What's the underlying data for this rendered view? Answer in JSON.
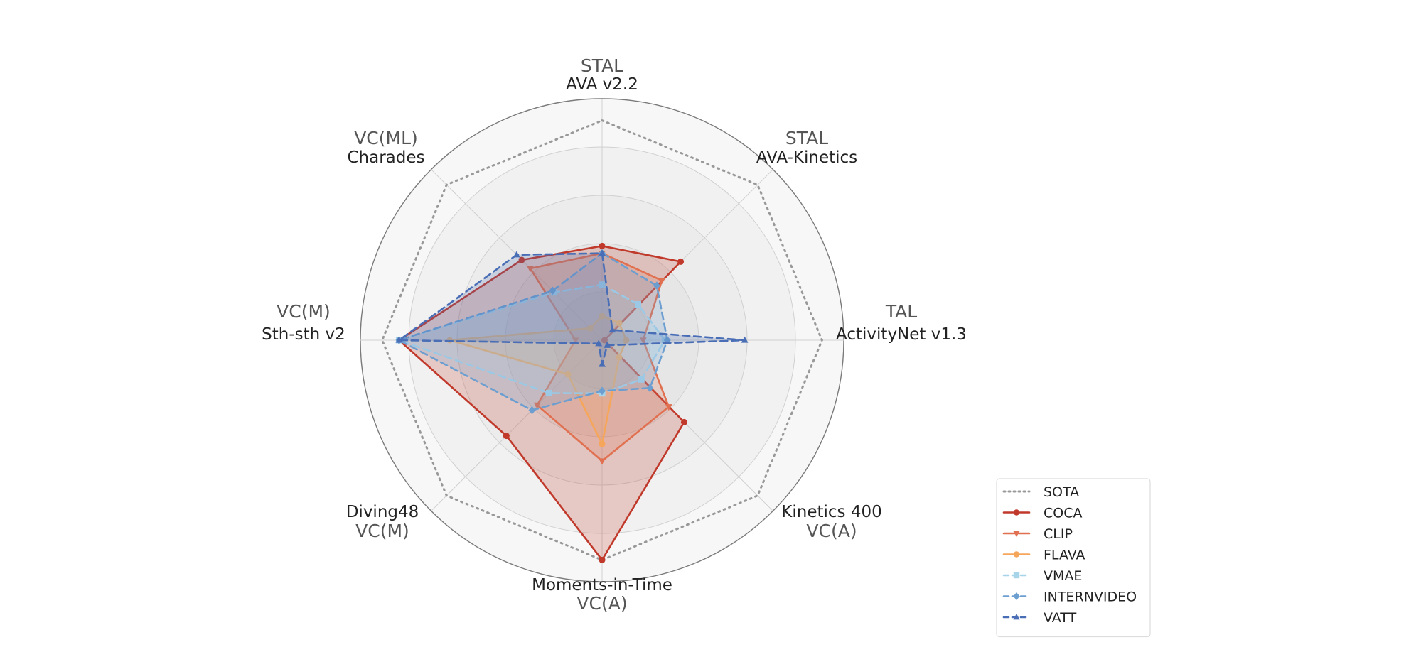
{
  "chart_data": {
    "type": "radar",
    "axes": [
      {
        "task": "STAL",
        "dataset": "AVA v2.2"
      },
      {
        "task": "STAL",
        "dataset": "AVA-Kinetics"
      },
      {
        "task": "TAL",
        "dataset": "ActivityNet v1.3"
      },
      {
        "task": "VC(A)",
        "dataset": "Kinetics 400"
      },
      {
        "task": "VC(A)",
        "dataset": "Moments-in-Time"
      },
      {
        "task": "VC(M)",
        "dataset": "Diving48"
      },
      {
        "task": "VC(M)",
        "dataset": "Sth-sth v2"
      },
      {
        "task": "VC(ML)",
        "dataset": "Charades"
      }
    ],
    "rlim": [
      0,
      1
    ],
    "rings": [
      0.2,
      0.4,
      0.6,
      0.8,
      1.0
    ],
    "grid": true,
    "legend_position": "lower-right",
    "series": [
      {
        "name": "SOTA",
        "values": [
          0.91,
          0.91,
          0.91,
          0.91,
          0.91,
          0.91,
          0.91,
          0.91
        ],
        "color": "#999999",
        "dash": "2 6",
        "marker": "none",
        "fill": false
      },
      {
        "name": "COCA",
        "values": [
          0.39,
          0.46,
          0.01,
          0.48,
          0.91,
          0.56,
          0.84,
          0.47
        ],
        "color": "#c0392b",
        "dash": "",
        "marker": "circle",
        "fill": true
      },
      {
        "name": "CLIP",
        "values": [
          0.36,
          0.35,
          0.17,
          0.39,
          0.5,
          0.38,
          0.11,
          0.42
        ],
        "color": "#e07050",
        "dash": "",
        "marker": "triangle-down",
        "fill": true
      },
      {
        "name": "FLAVA",
        "values": [
          0.1,
          0.1,
          0.1,
          0.1,
          0.43,
          0.2,
          0.63,
          0.07
        ],
        "color": "#f5a65b",
        "dash": "",
        "marker": "circle",
        "fill": true
      },
      {
        "name": "VMAE",
        "values": [
          0.23,
          0.21,
          0.26,
          0.23,
          0.22,
          0.31,
          0.84,
          0.28
        ],
        "color": "#a8d4ea",
        "dash": "10 6",
        "marker": "square",
        "fill": true
      },
      {
        "name": "INTERNVIDEO",
        "values": [
          0.36,
          0.32,
          0.27,
          0.28,
          0.21,
          0.41,
          0.84,
          0.29
        ],
        "color": "#6c9ed0",
        "dash": "10 6",
        "marker": "diamond",
        "fill": true
      },
      {
        "name": "VATT",
        "values": [
          0.36,
          0.06,
          0.59,
          0.03,
          0.1,
          0.02,
          0.84,
          0.5
        ],
        "color": "#4a6eb5",
        "dash": "10 6",
        "marker": "triangle-up",
        "fill": true
      }
    ]
  }
}
